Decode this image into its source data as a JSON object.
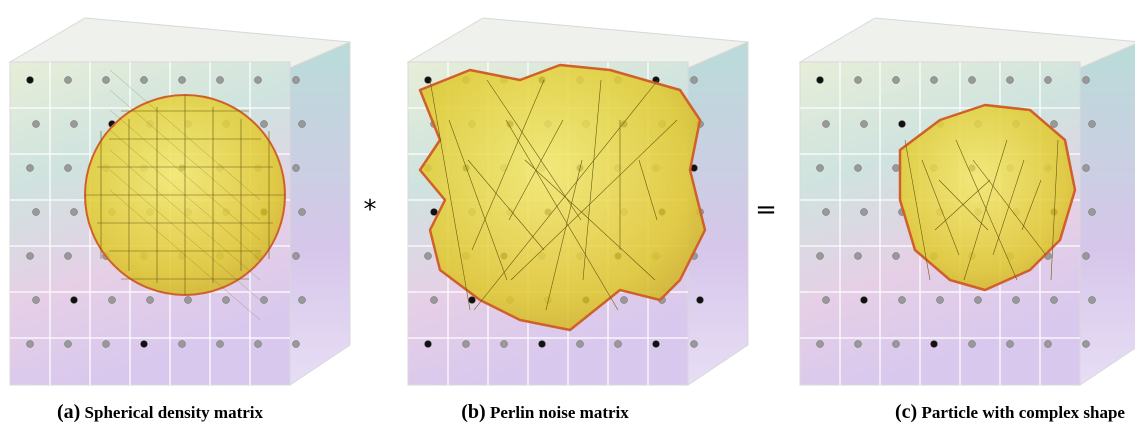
{
  "panels": [
    {
      "label": "(a)",
      "caption": "Spherical density matrix"
    },
    {
      "label": "(b)",
      "caption": "Perlin noise matrix"
    },
    {
      "label": "(c)",
      "caption": "Particle with complex shape"
    }
  ],
  "operators": [
    "*",
    "="
  ]
}
